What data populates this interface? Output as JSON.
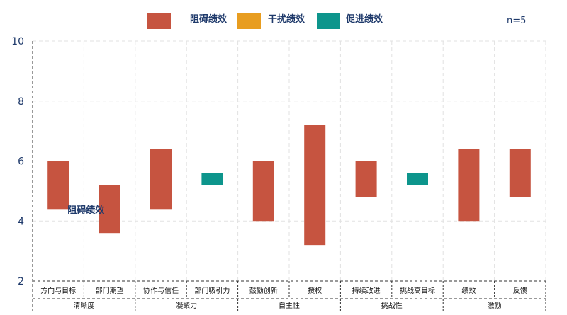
{
  "chart_data": {
    "type": "bar",
    "note": "n=5",
    "ylim": [
      2,
      10
    ],
    "yticks": [
      2,
      4,
      6,
      8,
      10
    ],
    "grid": true,
    "legend": [
      {
        "name": "阻碍绩效",
        "color": "#c65440"
      },
      {
        "name": "干扰绩效",
        "color": "#e89d20"
      },
      {
        "name": "促进绩效",
        "color": "#0d958c"
      }
    ],
    "categories": [
      "方向与目标",
      "部门期望",
      "协作与信任",
      "部门吸引力",
      "鼓励创新",
      "授权",
      "持续改进",
      "挑战高目标",
      "绩效",
      "反馈"
    ],
    "groups": [
      {
        "label": "清晰度",
        "span": 2
      },
      {
        "label": "凝聚力",
        "span": 2
      },
      {
        "label": "自主性",
        "span": 2
      },
      {
        "label": "挑战性",
        "span": 2
      },
      {
        "label": "激励",
        "span": 2
      }
    ],
    "bars": [
      {
        "low": 4.4,
        "high": 6.0,
        "kind": "阻碍绩效"
      },
      {
        "low": 3.6,
        "high": 5.2,
        "kind": "阻碍绩效"
      },
      {
        "low": 4.4,
        "high": 6.4,
        "kind": "阻碍绩效"
      },
      {
        "low": 5.2,
        "high": 5.6,
        "kind": "促进绩效"
      },
      {
        "low": 4.0,
        "high": 6.0,
        "kind": "阻碍绩效"
      },
      {
        "low": 3.2,
        "high": 7.2,
        "kind": "阻碍绩效"
      },
      {
        "low": 4.8,
        "high": 6.0,
        "kind": "阻碍绩效"
      },
      {
        "low": 5.2,
        "high": 5.6,
        "kind": "促进绩效"
      },
      {
        "low": 4.0,
        "high": 6.4,
        "kind": "阻碍绩效"
      },
      {
        "low": 4.8,
        "high": 6.4,
        "kind": "阻碍绩效"
      }
    ],
    "annotation": {
      "text": "阻碍绩效",
      "category": 0,
      "y": 4.2
    }
  }
}
